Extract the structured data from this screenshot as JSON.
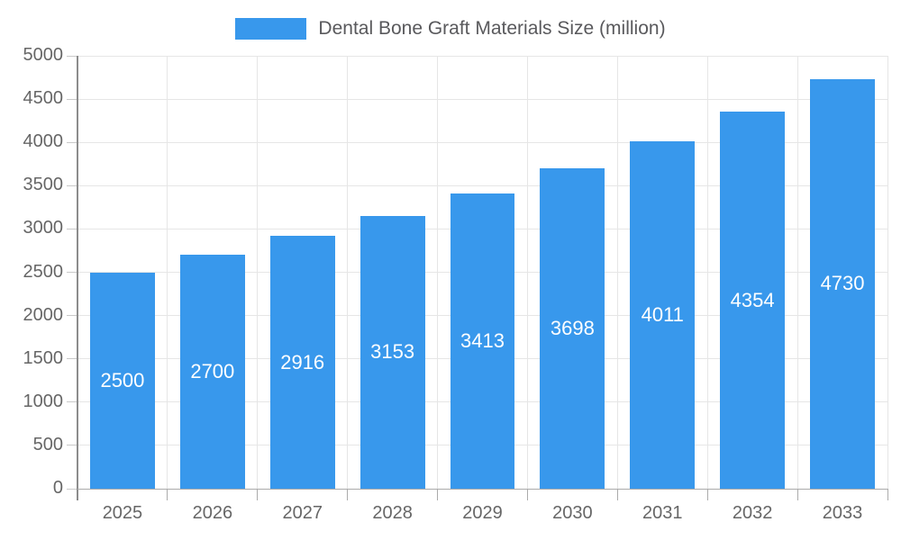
{
  "legend": {
    "label": "Dental Bone Graft Materials Size (million)"
  },
  "colors": {
    "bar": "#3898EC",
    "grid": "#E6E6E6",
    "y_axis_line": "#8C8C8C",
    "x_axis_line": "#ABABAB",
    "tick_mark": "#C9C9C9",
    "tick_label": "#666666",
    "legend_text": "#59595C",
    "value_label": "#FFFFFF",
    "background": "#FFFFFF"
  },
  "chart_data": {
    "type": "bar",
    "title": "Dental Bone Graft Materials Size (million)",
    "categories": [
      "2025",
      "2026",
      "2027",
      "2028",
      "2029",
      "2030",
      "2031",
      "2032",
      "2033"
    ],
    "values": [
      2500,
      2700,
      2916,
      3153,
      3413,
      3698,
      4011,
      4354,
      4730
    ],
    "xlabel": "",
    "ylabel": "",
    "ylim": [
      0,
      5000
    ],
    "ytick_step": 500,
    "grid": true,
    "legend_position": "top-center",
    "value_labels": "inside-center-white"
  }
}
